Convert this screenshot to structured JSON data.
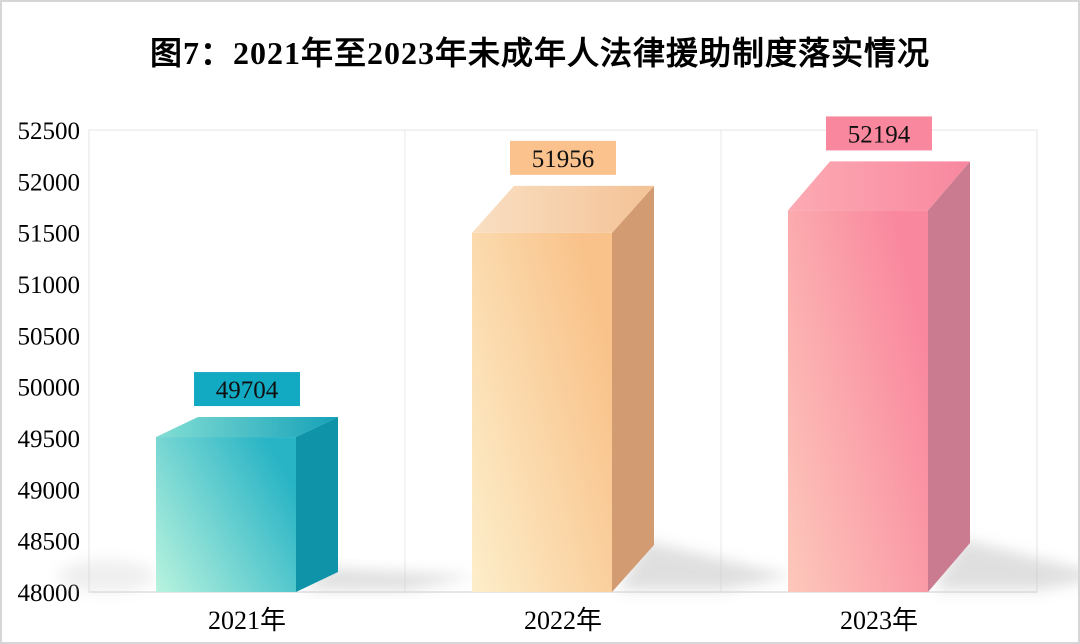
{
  "figure": {
    "background_color": "#ffffff",
    "outer_border_color": "#d6d6d8",
    "plot_border_color": "#ededef",
    "divider_color": "#f0f0f2",
    "text_color": "#000000"
  },
  "chart_data": {
    "type": "bar",
    "style": "3d-perspective",
    "title": "图7：2021年至2023年未成年人法律援助制度落实情况",
    "categories": [
      "2021年",
      "2022年",
      "2023年"
    ],
    "values": [
      49704,
      51956,
      52194
    ],
    "value_labels": [
      "49704",
      "51956",
      "52194"
    ],
    "xlabel": "",
    "ylabel": "",
    "ylim": [
      48000,
      52500
    ],
    "ytick_step": 500,
    "ytick_labels": [
      "48000",
      "48500",
      "49000",
      "49500",
      "50000",
      "50500",
      "51000",
      "51500",
      "52000",
      "52500"
    ],
    "grid": "vertical-category-dividers-only",
    "legend_position": "none",
    "series_colors": [
      {
        "category": "2021年",
        "front_light": "#b9f3de",
        "front_dark": "#29b4c5",
        "top_light": "#83ded4",
        "top_dark": "#15a1b8",
        "side": "#0e93a9",
        "label_bg": "#12a9c3"
      },
      {
        "category": "2022年",
        "front_light": "#fdeeca",
        "front_dark": "#f9c28a",
        "top_light": "#f9dfc2",
        "top_dark": "#f4c296",
        "side": "#d39b72",
        "label_bg": "#fbc28e"
      },
      {
        "category": "2023年",
        "front_light": "#fdc8bb",
        "front_dark": "#f9879e",
        "top_light": "#fcaab3",
        "top_dark": "#f8879f",
        "side": "#ca7b90",
        "label_bg": "#f9889f"
      }
    ]
  }
}
